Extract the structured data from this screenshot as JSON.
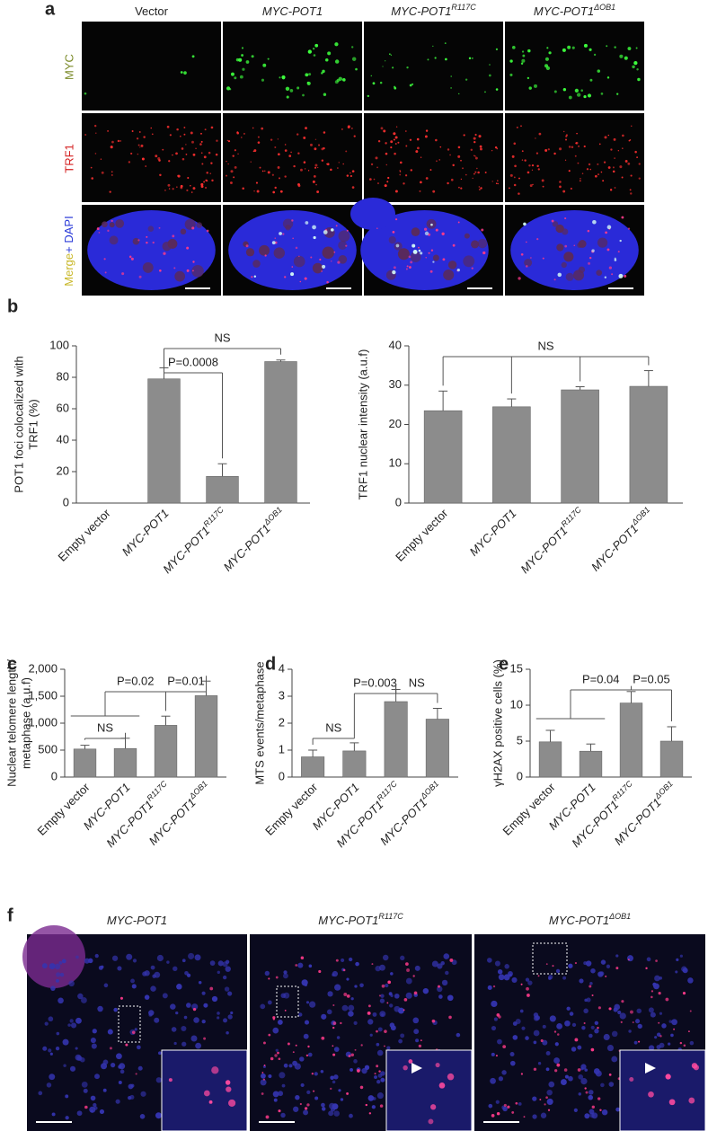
{
  "panel_a": {
    "letter": "a",
    "columns": [
      "Vector",
      "MYC-POT1",
      "MYC-POT1",
      "MYC-POT1"
    ],
    "column_sup": [
      null,
      null,
      "R117C",
      "ΔOB1"
    ],
    "rows": [
      "MYC",
      "TRF1"
    ],
    "merge_label": [
      "Merge",
      "+ DAPI"
    ]
  },
  "letters": [
    "b",
    "c",
    "d",
    "e"
  ],
  "chart_data": [
    {
      "type": "bar",
      "ylabel": [
        "POT1 foci colocalized with",
        "TRF1 (%)"
      ],
      "categories": [
        "Empty vector",
        "MYC-POT1",
        "MYC-POT1",
        "MYC-POT1"
      ],
      "category_sup": [
        null,
        null,
        "R117C",
        "ΔOB1"
      ],
      "values": [
        0,
        79,
        17,
        90
      ],
      "errors": [
        0,
        7,
        8,
        1
      ],
      "color": "#8c8c8c",
      "ylim": [
        0,
        100
      ],
      "yticks": [
        0,
        20,
        40,
        60,
        80,
        100
      ],
      "annotations": [
        "NS",
        "P=0.0008"
      ]
    },
    {
      "type": "bar",
      "ylabel": [
        "TRF1 nuclear intensity (a.u.f)"
      ],
      "categories": [
        "Empty vector",
        "MYC-POT1",
        "MYC-POT1",
        "MYC-POT1"
      ],
      "category_sup": [
        null,
        null,
        "R117C",
        "ΔOB1"
      ],
      "values": [
        23.5,
        24.5,
        28.8,
        29.7
      ],
      "errors": [
        5,
        2,
        0.8,
        4
      ],
      "color": "#8c8c8c",
      "ylim": [
        0,
        40
      ],
      "yticks": [
        0,
        10,
        20,
        30,
        40
      ],
      "annotations": [
        "NS"
      ]
    },
    {
      "type": "bar",
      "ylabel": [
        "Nuclear telomere length/",
        "metaphase (a.u.f)"
      ],
      "categories": [
        "Empty vector",
        "MYC-POT1",
        "MYC-POT1",
        "MYC-POT1"
      ],
      "category_sup": [
        null,
        null,
        "R117C",
        "ΔOB1"
      ],
      "values": [
        520,
        530,
        960,
        1510
      ],
      "errors": [
        70,
        190,
        170,
        270
      ],
      "color": "#8c8c8c",
      "ylim": [
        0,
        2000
      ],
      "yticks": [
        0,
        500,
        {
          "value": 1000,
          "label": "1,000"
        },
        {
          "value": 1500,
          "label": "1,500"
        },
        {
          "value": 2000,
          "label": "2,000"
        }
      ],
      "annotations": [
        "NS",
        "P=0.02",
        "P=0.01"
      ]
    },
    {
      "type": "bar",
      "ylabel": [
        "MTS events/metaphase"
      ],
      "categories": [
        "Empty vector",
        "MYC-POT1",
        "MYC-POT1",
        "MYC-POT1"
      ],
      "category_sup": [
        null,
        null,
        "R117C",
        "ΔOB1"
      ],
      "values": [
        0.75,
        0.97,
        2.8,
        2.15
      ],
      "errors": [
        0.25,
        0.3,
        0.45,
        0.4
      ],
      "color": "#8c8c8c",
      "ylim": [
        0,
        4
      ],
      "yticks": [
        0,
        1,
        2,
        3,
        4
      ],
      "annotations": [
        "NS",
        "P=0.003",
        "NS"
      ]
    },
    {
      "type": "bar",
      "ylabel": [
        "γH2AX positive cells (%)"
      ],
      "categories": [
        "Empty vector",
        "MYC-POT1",
        "MYC-POT1",
        "MYC-POT1"
      ],
      "category_sup": [
        null,
        null,
        "R117C",
        "ΔOB1"
      ],
      "values": [
        4.9,
        3.6,
        10.3,
        5.0
      ],
      "errors": [
        1.6,
        1.0,
        1.6,
        2.0
      ],
      "color": "#8c8c8c",
      "ylim": [
        0,
        15
      ],
      "yticks": [
        0,
        5,
        10,
        15
      ],
      "annotations": [
        "P=0.04",
        "P=0.05"
      ]
    }
  ],
  "panel_f": {
    "letter": "f",
    "columns": [
      "MYC-POT1",
      "MYC-POT1",
      "MYC-POT1"
    ],
    "column_sup": [
      null,
      "R117C",
      "ΔOB1"
    ]
  }
}
